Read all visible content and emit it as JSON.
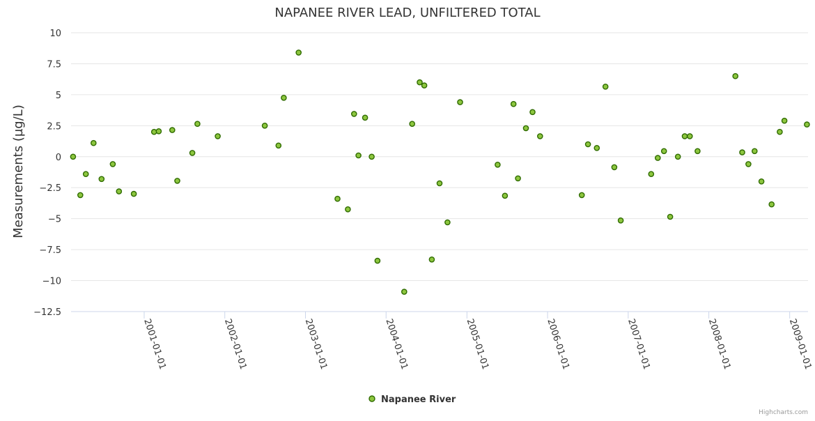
{
  "colors": {
    "marker_fill": "#8dc63f",
    "marker_stroke": "#2f6b00",
    "grid": "#e6e6e6",
    "axis": "#ccd6eb",
    "text": "#333333"
  },
  "credits": "Highcharts.com",
  "chart_data": {
    "type": "scatter",
    "title": "NAPANEE RIVER LEAD, UNFILTERED TOTAL",
    "xlabel": "",
    "ylabel": "Measurements (µg/L)",
    "ylim": [
      -12.5,
      10
    ],
    "yticks": [
      10,
      7.5,
      5,
      2.5,
      0,
      -2.5,
      -5,
      -7.5,
      -10,
      -12.5
    ],
    "ytick_labels": [
      "10",
      "7.5",
      "5",
      "2.5",
      "0",
      "−2.5",
      "−5",
      "−7.5",
      "−10",
      "−12.5"
    ],
    "xlim": [
      "2000-02-05",
      "2009-03-25"
    ],
    "xticks": [
      "2001-01-01",
      "2002-01-01",
      "2003-01-01",
      "2004-01-01",
      "2005-01-01",
      "2006-01-01",
      "2007-01-01",
      "2008-01-01",
      "2009-01-01"
    ],
    "legend": {
      "position": "bottom-center",
      "entries": [
        "Napanee River"
      ]
    },
    "series": [
      {
        "name": "Napanee River",
        "x": [
          "2000-02-14",
          "2000-03-18",
          "2000-04-12",
          "2000-05-17",
          "2000-06-22",
          "2000-08-12",
          "2000-09-09",
          "2000-11-15",
          "2001-02-15",
          "2001-03-08",
          "2001-05-08",
          "2001-05-31",
          "2001-08-07",
          "2001-08-30",
          "2001-11-30",
          "2002-07-01",
          "2002-09-01",
          "2002-09-25",
          "2002-12-01",
          "2003-05-26",
          "2003-07-12",
          "2003-08-09",
          "2003-08-29",
          "2003-09-28",
          "2003-10-28",
          "2003-11-23",
          "2004-03-23",
          "2004-04-28",
          "2004-06-01",
          "2004-06-22",
          "2004-07-26",
          "2004-08-30",
          "2004-10-05",
          "2004-12-01",
          "2005-05-20",
          "2005-06-22",
          "2005-07-31",
          "2005-08-20",
          "2005-09-25",
          "2005-10-25",
          "2005-11-28",
          "2006-06-05",
          "2006-07-03",
          "2006-08-12",
          "2006-09-20",
          "2006-10-30",
          "2006-11-28",
          "2007-04-15",
          "2007-05-15",
          "2007-06-12",
          "2007-07-10",
          "2007-08-14",
          "2007-09-14",
          "2007-10-07",
          "2007-11-11",
          "2008-04-30",
          "2008-05-31",
          "2008-06-28",
          "2008-07-26",
          "2008-08-26",
          "2008-10-11",
          "2008-11-17",
          "2008-12-08",
          "2009-03-20"
        ],
        "y": [
          0,
          -3.1,
          -1.4,
          1.1,
          -1.8,
          -0.6,
          -2.8,
          -3.0,
          2.0,
          2.05,
          2.15,
          -1.95,
          0.3,
          2.65,
          1.65,
          2.5,
          0.9,
          4.75,
          8.4,
          -3.4,
          -4.25,
          3.45,
          0.1,
          3.15,
          0,
          -8.4,
          -10.9,
          2.65,
          6.0,
          5.75,
          -8.3,
          -2.15,
          -5.3,
          4.4,
          -0.65,
          -3.15,
          4.25,
          -1.75,
          2.3,
          3.6,
          1.65,
          -3.1,
          1.0,
          0.7,
          5.65,
          -0.85,
          -5.15,
          -1.4,
          -0.1,
          0.45,
          -4.85,
          0,
          1.65,
          1.65,
          0.45,
          6.5,
          0.35,
          -0.6,
          0.45,
          -2.0,
          -3.85,
          2.0,
          2.9,
          2.6
        ]
      }
    ]
  }
}
